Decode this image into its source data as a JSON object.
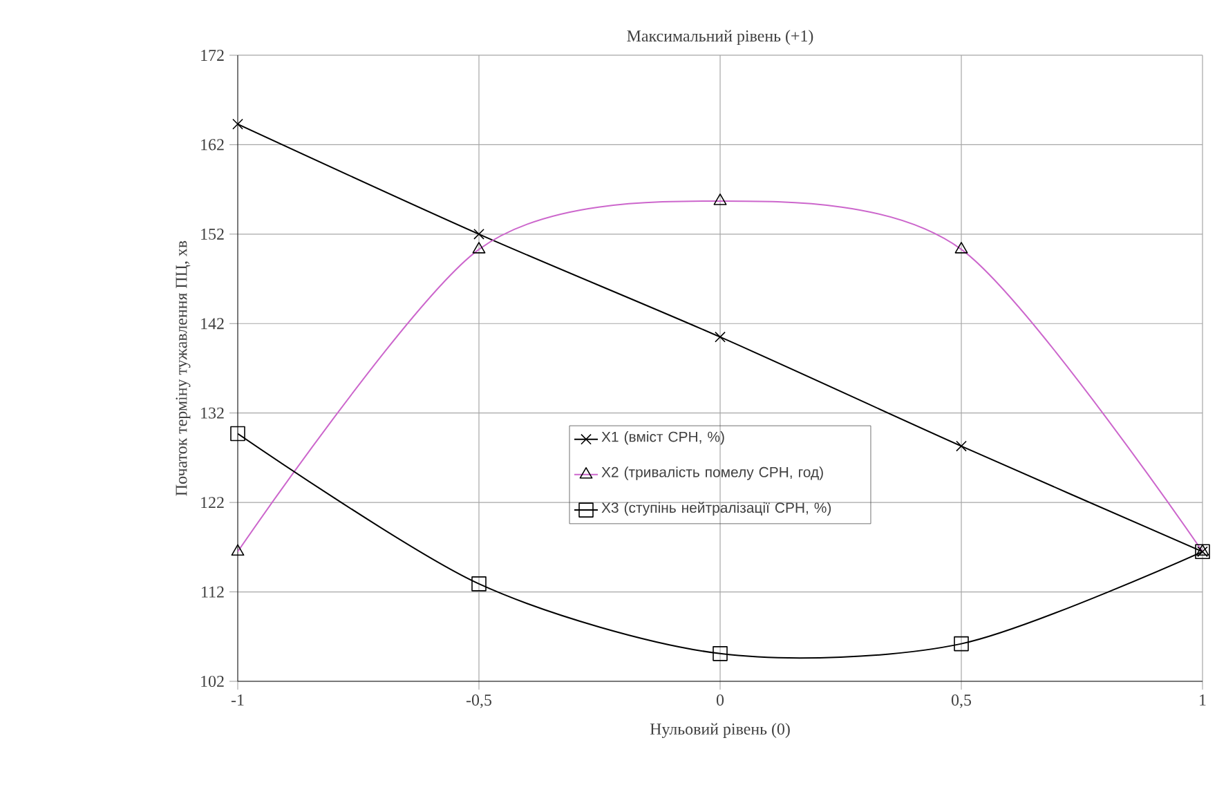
{
  "chart_data": {
    "type": "line",
    "title": "Максимальний рівень (+1)",
    "xlabel": "Нульовий рівень (0)",
    "ylabel": "Початок терміну тужавлення ПЦ, хв",
    "x": [
      -1,
      -0.5,
      0,
      0.5,
      1
    ],
    "series": [
      {
        "name": "X1 (вміст СРН, %)",
        "color": "#000000",
        "marker": "cross",
        "values": [
          164.3,
          152,
          140.5,
          128.3,
          116.5
        ]
      },
      {
        "name": "X2 (тривалість помелу СРН, год)",
        "color": "#cc66cc",
        "marker": "triangle",
        "values": [
          116.5,
          150.3,
          155.7,
          150.3,
          116.5
        ]
      },
      {
        "name": "X3 (ступінь нейтралізації СРН, %)",
        "color": "#000000",
        "marker": "square",
        "values": [
          129.7,
          112.9,
          105.1,
          106.2,
          116.5
        ]
      }
    ],
    "xlim": [
      -1,
      1
    ],
    "ylim": [
      102,
      172
    ],
    "xticks": [
      -1,
      {
        "value": -0.5,
        "label": "-0,5"
      },
      0,
      {
        "value": 0.5,
        "label": "0,5"
      },
      1
    ],
    "yticks": [
      102,
      112,
      122,
      132,
      142,
      152,
      162,
      172
    ],
    "grid": true,
    "legend": "center",
    "line_style": "solid"
  }
}
